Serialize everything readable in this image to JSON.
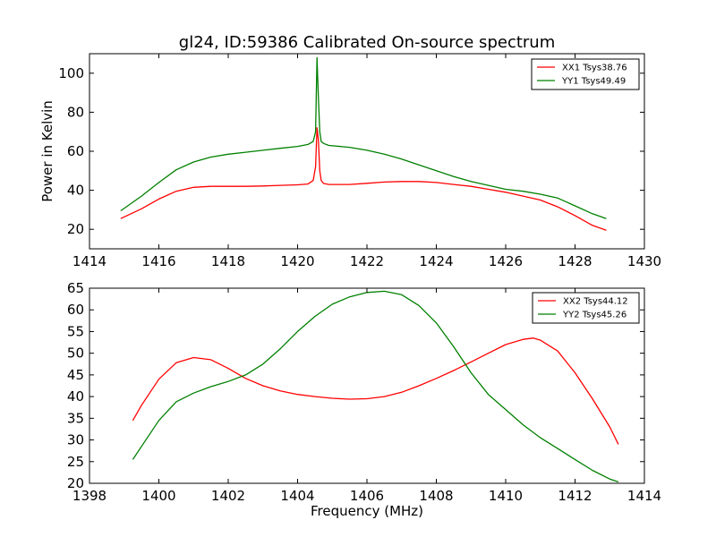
{
  "chart_data": [
    {
      "type": "line",
      "title": "gl24, ID:59386 Calibrated On-source spectrum",
      "xlabel": "",
      "ylabel": "Power in Kelvin",
      "xlim": [
        1414,
        1430
      ],
      "ylim": [
        10,
        110
      ],
      "xticks": [
        "1414",
        "1416",
        "1418",
        "1420",
        "1422",
        "1424",
        "1426",
        "1428",
        "1430"
      ],
      "yticks": [
        "20",
        "40",
        "60",
        "80",
        "100"
      ],
      "xtick_values": [
        1414,
        1416,
        1418,
        1420,
        1422,
        1424,
        1426,
        1428,
        1430
      ],
      "ytick_values": [
        20,
        40,
        60,
        80,
        100
      ],
      "grid": false,
      "legend_position": "top-right",
      "series": [
        {
          "name": "XX1 Tsys38.76",
          "color": "#ff0000",
          "x": [
            1414.9,
            1415.5,
            1416.0,
            1416.5,
            1417.0,
            1417.5,
            1418.0,
            1418.5,
            1419.0,
            1419.5,
            1420.0,
            1420.3,
            1420.45,
            1420.52,
            1420.56,
            1420.6,
            1420.64,
            1420.68,
            1420.75,
            1420.9,
            1421.5,
            1422.0,
            1422.5,
            1423.0,
            1423.5,
            1424.0,
            1424.5,
            1425.0,
            1425.5,
            1426.0,
            1426.5,
            1427.0,
            1427.5,
            1428.0,
            1428.5,
            1428.9
          ],
          "y": [
            25.5,
            30.5,
            35.5,
            39.5,
            41.5,
            42.0,
            42.0,
            42.0,
            42.2,
            42.5,
            42.8,
            43.2,
            45.0,
            52.0,
            72.0,
            66.0,
            50.0,
            45.0,
            43.5,
            43.0,
            43.0,
            43.6,
            44.2,
            44.5,
            44.5,
            44.0,
            43.0,
            42.0,
            40.5,
            39.0,
            37.0,
            35.0,
            31.5,
            27.0,
            22.0,
            19.5
          ]
        },
        {
          "name": "YY1 Tsys49.49",
          "color": "#008000",
          "x": [
            1414.9,
            1415.5,
            1416.0,
            1416.5,
            1417.0,
            1417.5,
            1418.0,
            1418.5,
            1419.0,
            1419.5,
            1420.0,
            1420.3,
            1420.45,
            1420.52,
            1420.56,
            1420.6,
            1420.64,
            1420.68,
            1420.75,
            1420.9,
            1421.5,
            1422.0,
            1422.5,
            1423.0,
            1423.5,
            1424.0,
            1424.5,
            1425.0,
            1425.5,
            1426.0,
            1426.5,
            1427.0,
            1427.5,
            1428.0,
            1428.5,
            1428.9
          ],
          "y": [
            29.5,
            37.0,
            44.0,
            50.5,
            54.5,
            57.0,
            58.5,
            59.5,
            60.5,
            61.5,
            62.5,
            63.5,
            65.0,
            70.0,
            108.0,
            88.0,
            70.0,
            65.0,
            64.0,
            63.0,
            62.0,
            60.5,
            58.5,
            56.0,
            53.0,
            50.0,
            47.0,
            44.5,
            42.5,
            40.5,
            39.5,
            38.0,
            36.0,
            32.0,
            28.0,
            25.5
          ]
        }
      ]
    },
    {
      "type": "line",
      "title": "",
      "xlabel": "Frequency (MHz)",
      "ylabel": "",
      "xlim": [
        1398,
        1414
      ],
      "ylim": [
        20,
        65
      ],
      "xticks": [
        "1398",
        "1400",
        "1402",
        "1404",
        "1406",
        "1408",
        "1410",
        "1412",
        "1414"
      ],
      "yticks": [
        "20",
        "25",
        "30",
        "35",
        "40",
        "45",
        "50",
        "55",
        "60",
        "65"
      ],
      "xtick_values": [
        1398,
        1400,
        1402,
        1404,
        1406,
        1408,
        1410,
        1412,
        1414
      ],
      "ytick_values": [
        20,
        25,
        30,
        35,
        40,
        45,
        50,
        55,
        60,
        65
      ],
      "grid": false,
      "legend_position": "top-right",
      "series": [
        {
          "name": "XX2 Tsys44.12",
          "color": "#ff0000",
          "x": [
            1399.25,
            1399.5,
            1400.0,
            1400.5,
            1401.0,
            1401.5,
            1402.0,
            1402.5,
            1403.0,
            1403.5,
            1404.0,
            1404.5,
            1405.0,
            1405.5,
            1406.0,
            1406.5,
            1407.0,
            1407.5,
            1408.0,
            1408.5,
            1409.0,
            1409.5,
            1410.0,
            1410.5,
            1410.8,
            1411.0,
            1411.5,
            1412.0,
            1412.5,
            1413.0,
            1413.25
          ],
          "y": [
            34.5,
            38.0,
            44.0,
            47.8,
            49.0,
            48.5,
            46.5,
            44.2,
            42.5,
            41.3,
            40.5,
            40.0,
            39.6,
            39.4,
            39.5,
            40.0,
            41.0,
            42.5,
            44.2,
            46.0,
            48.0,
            50.0,
            52.0,
            53.2,
            53.5,
            53.0,
            50.5,
            45.5,
            39.5,
            33.0,
            29.0
          ]
        },
        {
          "name": "YY2 Tsys45.26",
          "color": "#008000",
          "x": [
            1399.25,
            1399.5,
            1400.0,
            1400.5,
            1401.0,
            1401.5,
            1402.0,
            1402.5,
            1403.0,
            1403.5,
            1404.0,
            1404.5,
            1405.0,
            1405.5,
            1406.0,
            1406.5,
            1407.0,
            1407.5,
            1408.0,
            1408.5,
            1409.0,
            1409.5,
            1410.0,
            1410.5,
            1411.0,
            1411.5,
            1412.0,
            1412.5,
            1413.0,
            1413.25
          ],
          "y": [
            25.5,
            28.5,
            34.5,
            38.8,
            40.8,
            42.3,
            43.5,
            45.0,
            47.5,
            51.0,
            55.0,
            58.5,
            61.3,
            63.0,
            64.0,
            64.3,
            63.5,
            61.0,
            57.0,
            51.5,
            45.5,
            40.5,
            37.0,
            33.5,
            30.5,
            28.0,
            25.5,
            23.0,
            21.0,
            20.3
          ]
        }
      ]
    }
  ]
}
